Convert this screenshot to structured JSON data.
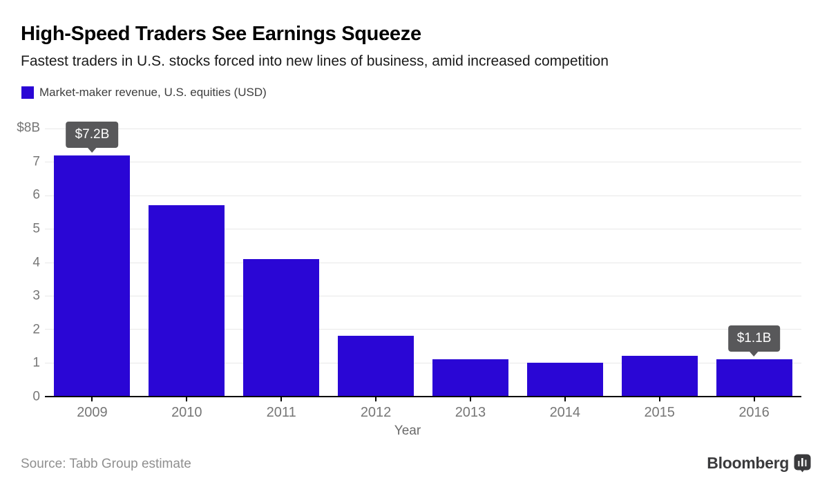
{
  "header": {
    "title": "High-Speed Traders See Earnings Squeeze",
    "subtitle": "Fastest traders in U.S. stocks forced into new lines of business, amid increased competition"
  },
  "legend": {
    "label": "Market-maker revenue, U.S. equities (USD)"
  },
  "chart_data": {
    "type": "bar",
    "title": "Market-maker revenue, U.S. equities (USD)",
    "categories": [
      "2009",
      "2010",
      "2011",
      "2012",
      "2013",
      "2014",
      "2015",
      "2016"
    ],
    "values": [
      7.2,
      5.7,
      4.1,
      1.8,
      1.1,
      1.0,
      1.2,
      1.1
    ],
    "xlabel": "Year",
    "ylabel": "",
    "ylim": [
      0,
      8
    ],
    "yticks": [
      "$8B",
      "7",
      "6",
      "5",
      "4",
      "3",
      "2",
      "1",
      "0"
    ],
    "grid": true,
    "legend_position": "top-left",
    "annotations": [
      {
        "index": 0,
        "label": "$7.2B"
      },
      {
        "index": 7,
        "label": "$1.1B"
      }
    ]
  },
  "colors": {
    "bar": "#2a06d5",
    "grid": "#e8e8e8",
    "callout_bg": "#58585a"
  },
  "footer": {
    "source": "Source: Tabb Group estimate",
    "brand": "Bloomberg"
  }
}
